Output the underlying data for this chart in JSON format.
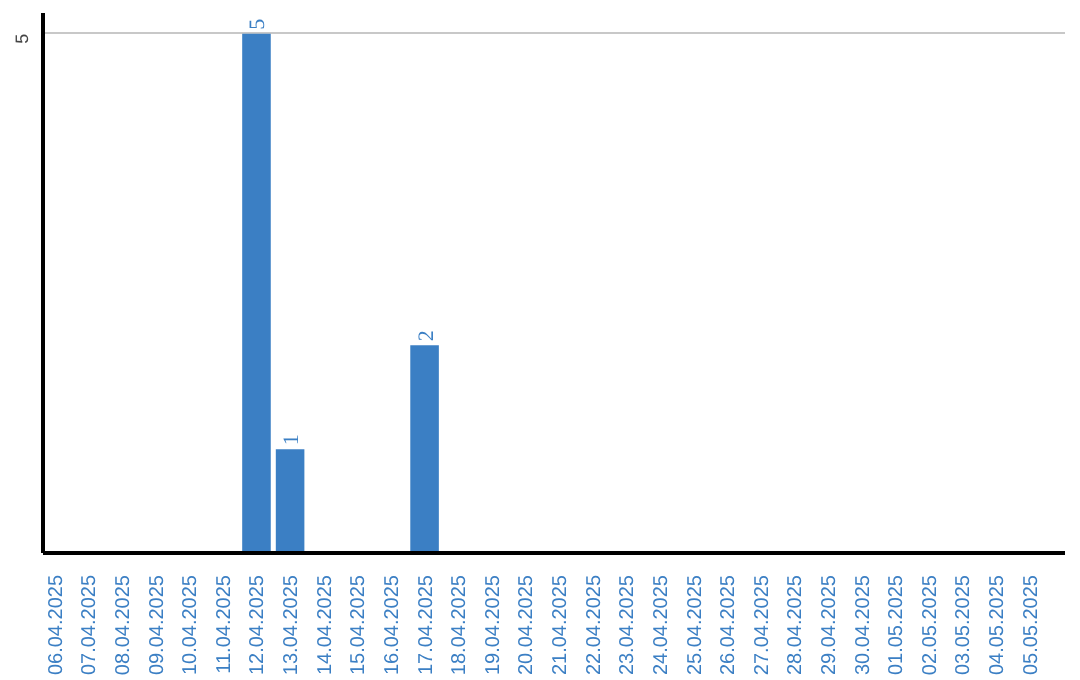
{
  "chart_data": {
    "type": "bar",
    "categories": [
      "06.04.2025",
      "07.04.2025",
      "08.04.2025",
      "09.04.2025",
      "10.04.2025",
      "11.04.2025",
      "12.04.2025",
      "13.04.2025",
      "14.04.2025",
      "15.04.2025",
      "16.04.2025",
      "17.04.2025",
      "18.04.2025",
      "19.04.2025",
      "20.04.2025",
      "21.04.2025",
      "22.04.2025",
      "23.04.2025",
      "24.04.2025",
      "25.04.2025",
      "26.04.2025",
      "27.04.2025",
      "28.04.2025",
      "29.04.2025",
      "30.04.2025",
      "01.05.2025",
      "02.05.2025",
      "03.05.2025",
      "04.05.2025",
      "05.05.2025"
    ],
    "values": [
      0,
      0,
      0,
      0,
      0,
      0,
      5,
      1,
      0,
      0,
      0,
      2,
      0,
      0,
      0,
      0,
      0,
      0,
      0,
      0,
      0,
      0,
      0,
      0,
      0,
      0,
      0,
      0,
      0,
      0
    ],
    "value_labels": [
      null,
      null,
      null,
      null,
      null,
      null,
      "5",
      "1",
      null,
      null,
      null,
      "2",
      null,
      null,
      null,
      null,
      null,
      null,
      null,
      null,
      null,
      null,
      null,
      null,
      null,
      null,
      null,
      null,
      null,
      null
    ],
    "color": "#3b7fc4",
    "ylim": [
      0,
      5.2
    ],
    "yticks": [
      5
    ],
    "grid": "y"
  }
}
